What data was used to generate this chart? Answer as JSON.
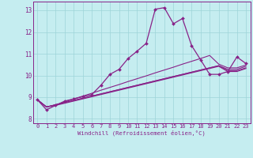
{
  "xlabel": "Windchill (Refroidissement éolien,°C)",
  "xlim": [
    -0.5,
    23.5
  ],
  "ylim": [
    7.8,
    13.4
  ],
  "xtick_labels": [
    "0",
    "1",
    "2",
    "3",
    "4",
    "5",
    "6",
    "7",
    "8",
    "9",
    "10",
    "11",
    "12",
    "13",
    "14",
    "15",
    "16",
    "17",
    "18",
    "19",
    "20",
    "21",
    "22",
    "23"
  ],
  "ytick_labels": [
    "8",
    "9",
    "10",
    "11",
    "12",
    "13"
  ],
  "background_color": "#c5edf0",
  "grid_color": "#9dd4d8",
  "line_color": "#882288",
  "lines": [
    [
      8.88,
      8.42,
      8.62,
      8.82,
      8.92,
      9.02,
      9.12,
      9.55,
      10.05,
      10.28,
      10.78,
      11.12,
      11.48,
      13.05,
      13.12,
      12.38,
      12.62,
      11.38,
      10.72,
      10.05,
      10.05,
      10.18,
      10.85,
      10.55
    ],
    [
      8.88,
      8.55,
      8.65,
      8.75,
      8.85,
      8.95,
      9.05,
      9.15,
      9.25,
      9.35,
      9.45,
      9.55,
      9.65,
      9.75,
      9.85,
      9.95,
      10.05,
      10.15,
      10.25,
      10.35,
      10.45,
      10.22,
      10.22,
      10.35
    ],
    [
      8.88,
      8.55,
      8.65,
      8.75,
      8.85,
      8.95,
      9.05,
      9.15,
      9.25,
      9.35,
      9.45,
      9.55,
      9.65,
      9.75,
      9.85,
      9.95,
      10.05,
      10.15,
      10.25,
      10.35,
      10.45,
      10.28,
      10.28,
      10.42
    ],
    [
      8.88,
      8.55,
      8.65,
      8.78,
      8.92,
      9.05,
      9.18,
      9.32,
      9.45,
      9.58,
      9.72,
      9.85,
      9.98,
      10.12,
      10.25,
      10.38,
      10.52,
      10.65,
      10.78,
      10.92,
      10.52,
      10.35,
      10.35,
      10.48
    ],
    [
      8.88,
      8.55,
      8.62,
      8.72,
      8.82,
      8.92,
      9.02,
      9.12,
      9.22,
      9.32,
      9.42,
      9.52,
      9.62,
      9.72,
      9.82,
      9.92,
      10.02,
      10.12,
      10.22,
      10.32,
      10.42,
      10.18,
      10.18,
      10.32
    ]
  ],
  "marker_indices": [
    0,
    1,
    2,
    3,
    4,
    5,
    6,
    7,
    8,
    9,
    10,
    11,
    12,
    13,
    14,
    15,
    16,
    17,
    18,
    19,
    20,
    21,
    22,
    23
  ]
}
